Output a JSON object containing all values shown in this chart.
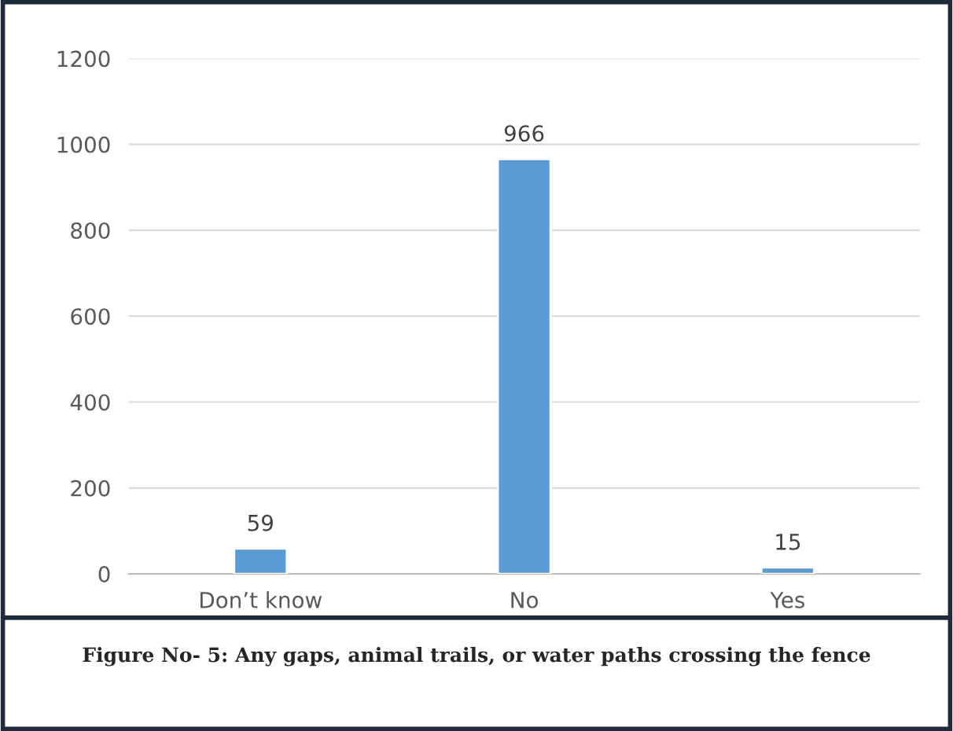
{
  "chart_data": {
    "type": "bar",
    "categories": [
      "Don’t know",
      "No",
      "Yes"
    ],
    "values": [
      59,
      966,
      15
    ],
    "color": "#5b9bd5",
    "ylim": [
      0,
      1200
    ],
    "yticks": [
      0,
      200,
      400,
      600,
      800,
      1000,
      1200
    ],
    "grid": "y",
    "data_labels": true,
    "annotations": [
      "Figure No- 5: Any gaps, animal trails, or water paths crossing the fence"
    ]
  }
}
